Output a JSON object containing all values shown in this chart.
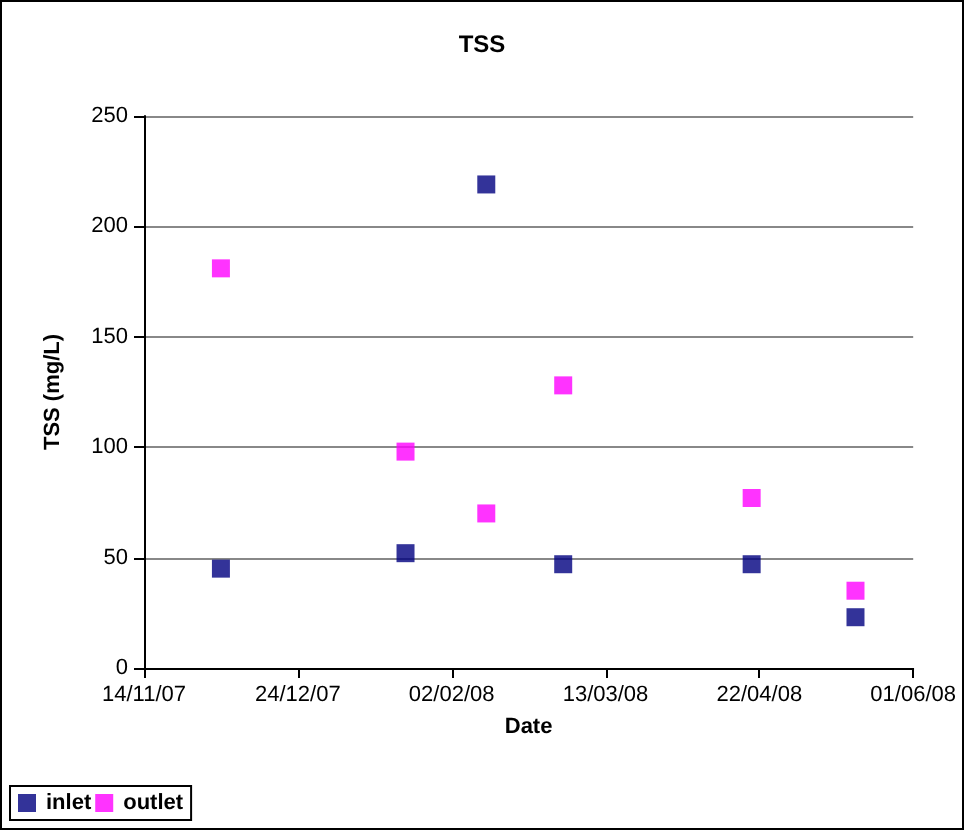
{
  "chart_data": {
    "type": "scatter",
    "title": "TSS",
    "xlabel": "Date",
    "ylabel": "TSS (mg/L)",
    "series": [
      {
        "name": "inlet",
        "color": "#000080",
        "x": [
          "2007-12-04",
          "2008-01-21",
          "2008-02-11",
          "2008-03-02",
          "2008-04-20",
          "2008-05-17"
        ],
        "values": [
          45,
          52,
          219,
          47,
          47,
          23
        ]
      },
      {
        "name": "outlet",
        "color": "#ff00ff",
        "x": [
          "2007-12-04",
          "2008-01-21",
          "2008-02-11",
          "2008-03-02",
          "2008-04-20",
          "2008-05-17"
        ],
        "values": [
          181,
          98,
          70,
          128,
          77,
          35
        ]
      }
    ],
    "xlim": [
      "2007-11-14",
      "2008-06-01"
    ],
    "xticks": [
      {
        "value": "2007-11-14",
        "label": "14/11/07"
      },
      {
        "value": "2007-12-24",
        "label": "24/12/07"
      },
      {
        "value": "2008-02-02",
        "label": "02/02/08"
      },
      {
        "value": "2008-03-13",
        "label": "13/03/08"
      },
      {
        "value": "2008-04-22",
        "label": "22/04/08"
      },
      {
        "value": "2008-06-01",
        "label": "01/06/08"
      }
    ],
    "ylim": [
      0,
      250
    ],
    "yticks": [
      0,
      50,
      100,
      150,
      200,
      250
    ],
    "grid": "y",
    "legend": "bottom left",
    "marker": "square"
  }
}
